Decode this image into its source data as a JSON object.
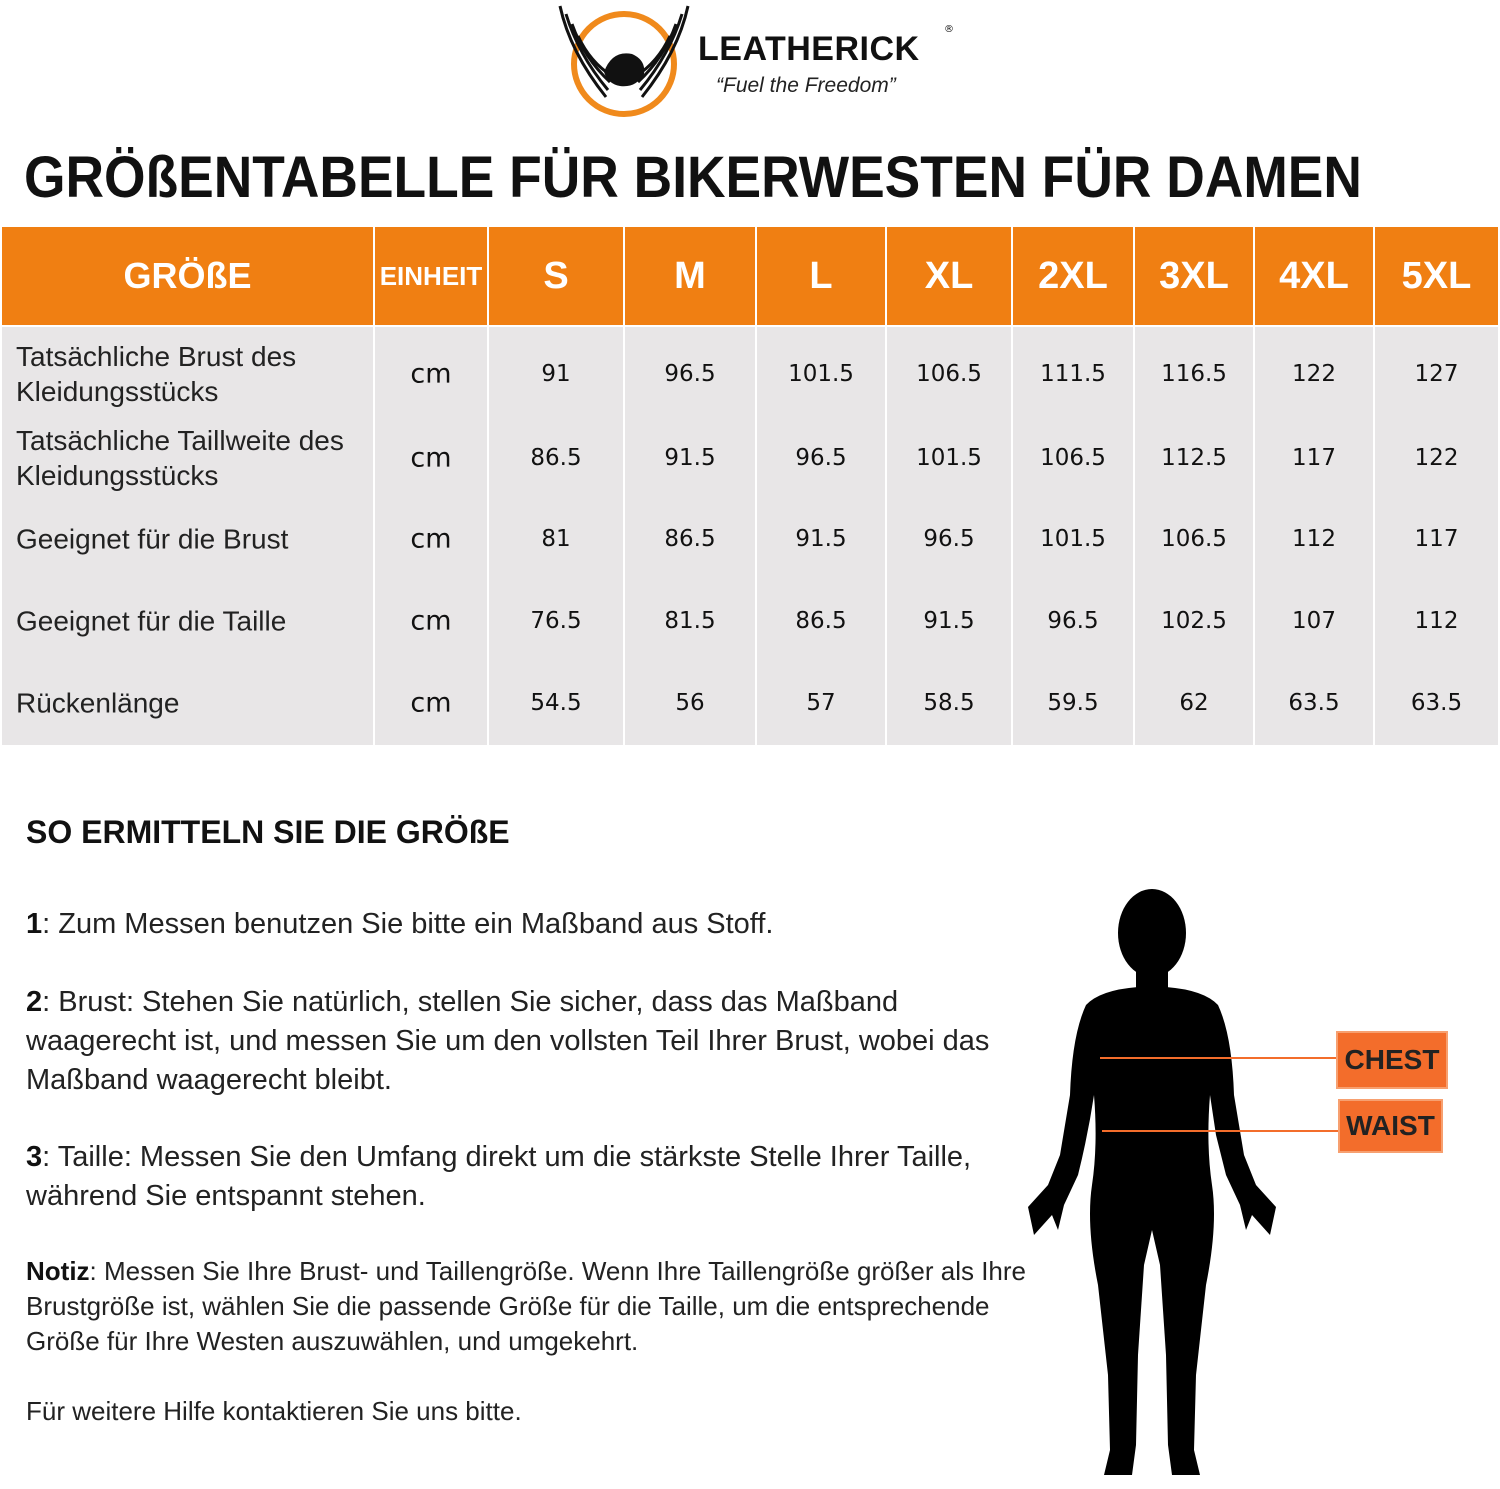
{
  "brand": {
    "name": "LEATHERICK",
    "registered": "®",
    "tagline": "“Fuel the Freedom”",
    "accent": "#f07f12"
  },
  "title": "GRÖßENTABELLE FÜR BIKERWESTEN FÜR DAMEN",
  "table": {
    "headers": [
      "GRÖßE",
      "EINHEIT",
      "S",
      "M",
      "L",
      "XL",
      "2XL",
      "3XL",
      "4XL",
      "5XL"
    ],
    "rows": [
      {
        "label": "Tatsächliche Brust des Kleidungsstücks",
        "unit": "cm",
        "values": [
          "91",
          "96.5",
          "101.5",
          "106.5",
          "111.5",
          "116.5",
          "122",
          "127"
        ]
      },
      {
        "label": "Tatsächliche Taillweite des Kleidungsstücks",
        "unit": "cm",
        "values": [
          "86.5",
          "91.5",
          "96.5",
          "101.5",
          "106.5",
          "112.5",
          "117",
          "122"
        ]
      },
      {
        "label": "Geeignet für die Brust",
        "unit": "cm",
        "values": [
          "81",
          "86.5",
          "91.5",
          "96.5",
          "101.5",
          "106.5",
          "112",
          "117"
        ]
      },
      {
        "label": "Geeignet für die Taille",
        "unit": "cm",
        "values": [
          "76.5",
          "81.5",
          "86.5",
          "91.5",
          "96.5",
          "102.5",
          "107",
          "112"
        ]
      },
      {
        "label": "Rückenlänge",
        "unit": "cm",
        "values": [
          "54.5",
          "56",
          "57",
          "58.5",
          "59.5",
          "62",
          "63.5",
          "63.5"
        ]
      }
    ]
  },
  "howto": {
    "heading": "SO ERMITTELN SIE DIE GRÖßE",
    "steps": [
      {
        "num": "1",
        "text": ": Zum Messen benutzen Sie bitte ein Maßband aus Stoff."
      },
      {
        "num": "2",
        "text": ": Brust: Stehen Sie natürlich, stellen Sie sicher, dass das Maßband waagerecht ist, und messen Sie um den vollsten Teil Ihrer Brust, wobei das Maßband waagerecht bleibt."
      },
      {
        "num": "3",
        "text": ": Taille: Messen Sie den Umfang direkt um die stärkste Stelle Ihrer Taille, während Sie entspannt stehen."
      }
    ],
    "note_label": "Notiz",
    "note_text": ": Messen Sie Ihre Brust- und Taillengröße. Wenn Ihre Taillengröße größer als Ihre Brustgröße ist, wählen Sie die passende Größe für die Taille, um die entsprechende Größe für Ihre Westen auszuwählen, und umgekehrt.",
    "contact": "Für weitere Hilfe kontaktieren Sie uns bitte."
  },
  "figure": {
    "chest_label": "CHEST",
    "waist_label": "WAIST",
    "marker_color": "#f36d2b"
  }
}
